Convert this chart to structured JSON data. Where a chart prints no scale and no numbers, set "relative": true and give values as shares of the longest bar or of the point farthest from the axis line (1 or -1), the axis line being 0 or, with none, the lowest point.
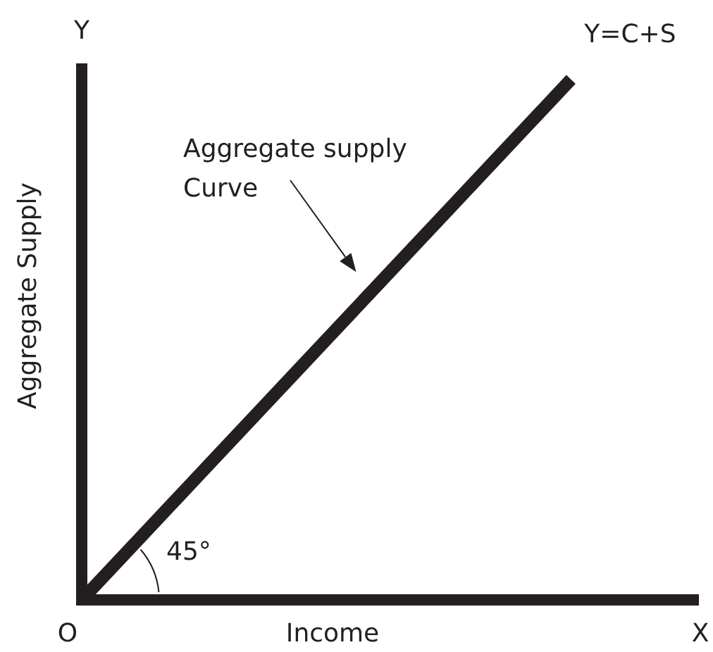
{
  "chart_data": {
    "type": "line",
    "xlabel": "Income",
    "ylabel": "Aggregate Supply",
    "categories": [
      null,
      null,
      null,
      null,
      null,
      null
    ],
    "series": [
      {
        "name": "Y=C+S",
        "color": "#231f20",
        "values": [
          0,
          0.25,
          0.5,
          0.75,
          1,
          null
        ]
      }
    ],
    "relative": true,
    "marker": "none",
    "line_style": "solid",
    "annotations": [
      "O",
      "X",
      "Y",
      "Aggregate supply\nCurve",
      "45°"
    ]
  }
}
